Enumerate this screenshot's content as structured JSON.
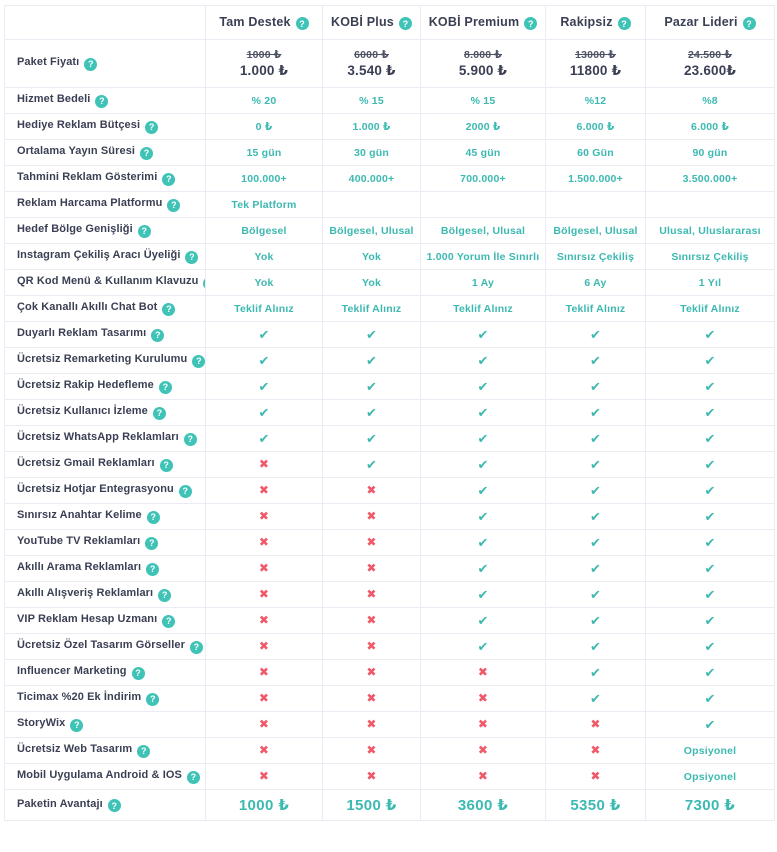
{
  "colors": {
    "accent_teal": "#3cb9b1",
    "help_icon_teal": "#3ec3b6",
    "cross_red": "#f0596a",
    "text_dark": "#3a3f53",
    "old_price": "#4d5364",
    "border": "#ecebf3"
  },
  "icons": {
    "help_glyph": "?",
    "check_glyph": "✔",
    "cross_glyph": "✖"
  },
  "columns": [
    {
      "label": "Tam Destek"
    },
    {
      "label": "KOBİ Plus"
    },
    {
      "label": "KOBİ Premium"
    },
    {
      "label": "Rakipsiz"
    },
    {
      "label": "Pazar Lideri"
    }
  ],
  "rows": [
    {
      "label": "Paket Fiyatı",
      "type": "price",
      "old": [
        "1000 ₺",
        "6000 ₺",
        "8.000 ₺",
        "13000 ₺",
        "24.500 ₺"
      ],
      "new": [
        "1.000 ₺",
        "3.540 ₺",
        "5.900 ₺",
        "11800 ₺",
        "23.600₺"
      ]
    },
    {
      "label": "Hizmet Bedeli",
      "type": "text",
      "cells": [
        "% 20",
        "% 15",
        "% 15",
        "%12",
        "%8"
      ]
    },
    {
      "label": "Hediye Reklam Bütçesi",
      "type": "text",
      "cells": [
        "0 ₺",
        "1.000 ₺",
        "2000 ₺",
        "6.000 ₺",
        "6.000 ₺"
      ]
    },
    {
      "label": "Ortalama Yayın Süresi",
      "type": "text",
      "cells": [
        "15 gün",
        "30 gün",
        "45 gün",
        "60 Gün",
        "90 gün"
      ]
    },
    {
      "label": "Tahmini Reklam Gösterimi",
      "type": "text",
      "cells": [
        "100.000+",
        "400.000+",
        "700.000+",
        "1.500.000+",
        "3.500.000+"
      ]
    },
    {
      "label": "Reklam Harcama Platformu",
      "type": "text",
      "cells": [
        "Tek Platform",
        "",
        "",
        "",
        ""
      ]
    },
    {
      "label": "Hedef Bölge Genişliği",
      "type": "text",
      "cells": [
        "Bölgesel",
        "Bölgesel, Ulusal",
        "Bölgesel, Ulusal",
        "Bölgesel, Ulusal",
        "Ulusal, Uluslararası"
      ]
    },
    {
      "label": "Instagram Çekiliş Aracı Üyeliği",
      "type": "text",
      "cells": [
        "Yok",
        "Yok",
        "1.000 Yorum İle Sınırlı",
        "Sınırsız Çekiliş",
        "Sınırsız Çekiliş"
      ]
    },
    {
      "label": "QR Kod Menü & Kullanım Klavuzu",
      "type": "text",
      "cells": [
        "Yok",
        "Yok",
        "1 Ay",
        "6 Ay",
        "1 Yıl"
      ]
    },
    {
      "label": "Çok Kanallı Akıllı Chat Bot",
      "type": "text",
      "cells": [
        "Teklif Alınız",
        "Teklif Alınız",
        "Teklif Alınız",
        "Teklif Alınız",
        "Teklif Alınız"
      ]
    },
    {
      "label": "Duyarlı Reklam Tasarımı",
      "type": "text",
      "cells": [
        "@check",
        "@check",
        "@check",
        "@check",
        "@check"
      ]
    },
    {
      "label": "Ücretsiz Remarketing Kurulumu",
      "type": "text",
      "cells": [
        "@check",
        "@check",
        "@check",
        "@check",
        "@check"
      ]
    },
    {
      "label": "Ücretsiz Rakip Hedefleme",
      "type": "text",
      "cells": [
        "@check",
        "@check",
        "@check",
        "@check",
        "@check"
      ]
    },
    {
      "label": "Ücretsiz Kullanıcı İzleme",
      "type": "text",
      "cells": [
        "@check",
        "@check",
        "@check",
        "@check",
        "@check"
      ]
    },
    {
      "label": "Ücretsiz WhatsApp Reklamları",
      "type": "text",
      "cells": [
        "@check",
        "@check",
        "@check",
        "@check",
        "@check"
      ]
    },
    {
      "label": "Ücretsiz Gmail Reklamları",
      "type": "text",
      "cells": [
        "@cross",
        "@check",
        "@check",
        "@check",
        "@check"
      ]
    },
    {
      "label": "Ücretsiz Hotjar Entegrasyonu",
      "type": "text",
      "cells": [
        "@cross",
        "@cross",
        "@check",
        "@check",
        "@check"
      ]
    },
    {
      "label": "Sınırsız Anahtar Kelime",
      "type": "text",
      "cells": [
        "@cross",
        "@cross",
        "@check",
        "@check",
        "@check"
      ]
    },
    {
      "label": "YouTube TV Reklamları",
      "type": "text",
      "cells": [
        "@cross",
        "@cross",
        "@check",
        "@check",
        "@check"
      ]
    },
    {
      "label": "Akıllı Arama Reklamları",
      "type": "text",
      "cells": [
        "@cross",
        "@cross",
        "@check",
        "@check",
        "@check"
      ]
    },
    {
      "label": "Akıllı Alışveriş Reklamları",
      "type": "text",
      "cells": [
        "@cross",
        "@cross",
        "@check",
        "@check",
        "@check"
      ]
    },
    {
      "label": "VIP Reklam Hesap Uzmanı",
      "type": "text",
      "cells": [
        "@cross",
        "@cross",
        "@check",
        "@check",
        "@check"
      ]
    },
    {
      "label": "Ücretsiz Özel Tasarım Görseller",
      "type": "text",
      "cells": [
        "@cross",
        "@cross",
        "@check",
        "@check",
        "@check"
      ]
    },
    {
      "label": "Influencer Marketing",
      "type": "text",
      "cells": [
        "@cross",
        "@cross",
        "@cross",
        "@check",
        "@check"
      ]
    },
    {
      "label": "Ticimax %20 Ek İndirim",
      "type": "text",
      "cells": [
        "@cross",
        "@cross",
        "@cross",
        "@check",
        "@check"
      ]
    },
    {
      "label": "StoryWix",
      "type": "text",
      "cells": [
        "@cross",
        "@cross",
        "@cross",
        "@cross",
        "@check"
      ]
    },
    {
      "label": "Ücretsiz Web Tasarım",
      "type": "text",
      "cells": [
        "@cross",
        "@cross",
        "@cross",
        "@cross",
        "Opsiyonel"
      ]
    },
    {
      "label": "Mobil Uygulama Android & IOS",
      "type": "text",
      "cells": [
        "@cross",
        "@cross",
        "@cross",
        "@cross",
        "Opsiyonel"
      ]
    },
    {
      "label": "Paketin Avantajı",
      "type": "big",
      "cells": [
        "1000 ₺",
        "1500 ₺",
        "3600 ₺",
        "5350 ₺",
        "7300 ₺"
      ]
    }
  ]
}
